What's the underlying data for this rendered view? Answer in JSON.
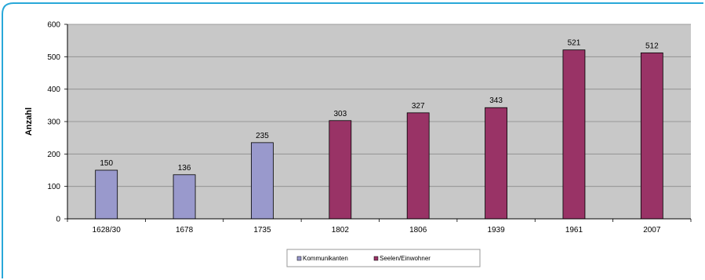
{
  "colors": {
    "frame": "#29a8d9",
    "plot_bg": "#c8c8c8",
    "kommunikanten": "#9999cc",
    "seelen": "#993366",
    "bar_stroke": "#000000",
    "grid": "#8a8a8a"
  },
  "chart_data": {
    "type": "bar",
    "categories": [
      "1628/30",
      "1678",
      "1735",
      "1802",
      "1806",
      "1939",
      "1961",
      "2007"
    ],
    "series": [
      {
        "name": "Kommunikanten",
        "values": [
          150,
          136,
          235,
          null,
          null,
          null,
          null,
          null
        ]
      },
      {
        "name": "Seelen/Einwohner",
        "values": [
          null,
          null,
          null,
          303,
          327,
          343,
          521,
          512
        ]
      }
    ],
    "data_labels": [
      "150",
      "136",
      "235",
      "303",
      "327",
      "343",
      "521",
      "512"
    ],
    "xlabel": "",
    "ylabel": "Anzahl",
    "ylim": [
      0,
      600
    ],
    "yticks": [
      "0",
      "100",
      "200",
      "300",
      "400",
      "500",
      "600"
    ],
    "grid": true,
    "legend_position": "bottom"
  }
}
